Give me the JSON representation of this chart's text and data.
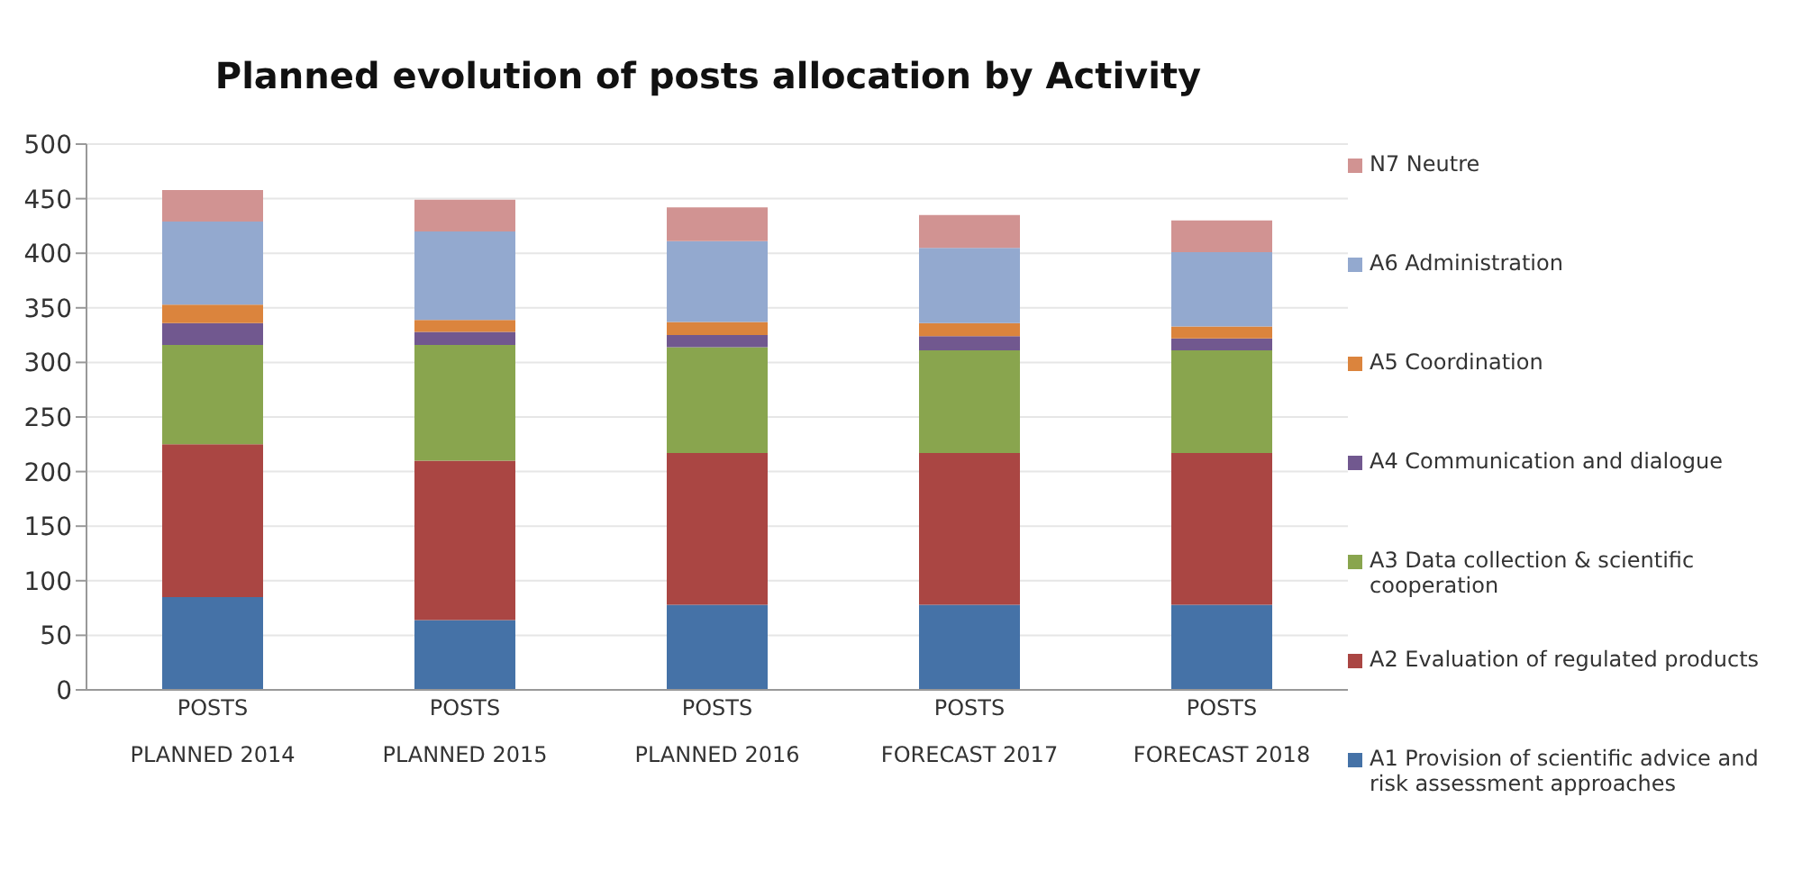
{
  "chart_data": {
    "type": "bar",
    "title": "Planned evolution of posts allocation by Activity",
    "categories": [
      "POSTS\nPLANNED 2014",
      "POSTS\nPLANNED 2015",
      "POSTS\nPLANNED 2016",
      "POSTS\nFORECAST 2017",
      "POSTS\nFORECAST 2018"
    ],
    "stacked": true,
    "series": [
      {
        "name": "A1 Provision of scientific advice and risk assessment approaches",
        "color": "#4572a7",
        "values": [
          85,
          64,
          78,
          78,
          78
        ]
      },
      {
        "name": "A2 Evaluation of regulated products",
        "color": "#aa4643",
        "values": [
          140,
          146,
          139,
          139,
          139
        ]
      },
      {
        "name": "A3 Data collection & scientific cooperation",
        "color": "#89a54e",
        "values": [
          91,
          106,
          97,
          94,
          94
        ]
      },
      {
        "name": "A4 Communication and dialogue",
        "color": "#71588f",
        "values": [
          20,
          12,
          11,
          13,
          11
        ]
      },
      {
        "name": "A5 Coordination",
        "color": "#db843d",
        "values": [
          17,
          11,
          12,
          12,
          11
        ]
      },
      {
        "name": "A6 Administration",
        "color": "#93a9cf",
        "values": [
          76,
          81,
          74,
          69,
          68
        ]
      },
      {
        "name": "N7 Neutre",
        "color": "#d19392",
        "values": [
          29,
          29,
          31,
          30,
          29
        ]
      }
    ],
    "ylim": [
      0,
      500
    ],
    "yticks": [
      0,
      50,
      100,
      150,
      200,
      250,
      300,
      350,
      400,
      450,
      500
    ],
    "grid": "y",
    "legend": "right"
  }
}
